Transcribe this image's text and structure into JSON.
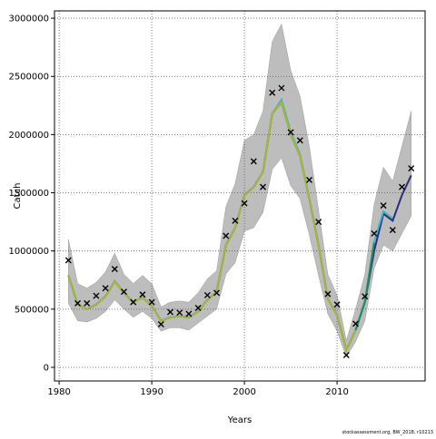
{
  "chart_data": {
    "type": "line",
    "xlabel": "Years",
    "ylabel": "Catch",
    "footer": "stockassessment.org, BW_2018, r10213",
    "x": [
      1981,
      1982,
      1983,
      1984,
      1985,
      1986,
      1987,
      1988,
      1989,
      1990,
      1991,
      1992,
      1993,
      1994,
      1995,
      1996,
      1997,
      1998,
      1999,
      2000,
      2001,
      2002,
      2003,
      2004,
      2005,
      2006,
      2007,
      2008,
      2009,
      2010,
      2011,
      2012,
      2013,
      2014,
      2015,
      2016,
      2017,
      2018
    ],
    "upper": [
      1100000,
      720000,
      680000,
      730000,
      820000,
      980000,
      800000,
      720000,
      790000,
      720000,
      520000,
      560000,
      570000,
      560000,
      640000,
      760000,
      830000,
      1380000,
      1580000,
      1950000,
      2000000,
      2200000,
      2800000,
      2950000,
      2550000,
      2330000,
      1900000,
      1350000,
      800000,
      620000,
      230000,
      500000,
      800000,
      1400000,
      1720000,
      1600000,
      1900000,
      2200000
    ],
    "lower": [
      550000,
      400000,
      390000,
      420000,
      480000,
      580000,
      500000,
      430000,
      480000,
      420000,
      310000,
      340000,
      340000,
      320000,
      380000,
      440000,
      500000,
      800000,
      900000,
      1170000,
      1200000,
      1330000,
      1700000,
      1800000,
      1560000,
      1450000,
      1140000,
      790000,
      460000,
      310000,
      90000,
      220000,
      400000,
      850000,
      1050000,
      1000000,
      1150000,
      1300000
    ],
    "band_color": "#bdbdbd",
    "series": [
      {
        "color": "#2b2d7c",
        "values": [
          790000,
          540000,
          500000,
          540000,
          610000,
          740000,
          640000,
          560000,
          600000,
          530000,
          400000,
          430000,
          440000,
          430000,
          480000,
          580000,
          650000,
          1050000,
          1200000,
          1480000,
          1550000,
          1680000,
          2180000,
          2280000,
          2000000,
          1820000,
          1450000,
          1050000,
          590000,
          450000,
          150000,
          320000,
          560000,
          1000000,
          1320000,
          1260000,
          1480000,
          1650000
        ]
      },
      {
        "color": "#3bb7c9",
        "values": [
          790000,
          540000,
          500000,
          540000,
          610000,
          740000,
          640000,
          560000,
          600000,
          530000,
          400000,
          430000,
          440000,
          430000,
          480000,
          580000,
          650000,
          1050000,
          1200000,
          1480000,
          1550000,
          1680000,
          2180000,
          2300000,
          2020000,
          1830000,
          1450000,
          1050000,
          590000,
          450000,
          150000,
          320000,
          570000,
          1080000,
          1340000,
          1280000,
          null,
          null
        ]
      },
      {
        "color": "#1f8a5a",
        "values": [
          790000,
          540000,
          500000,
          540000,
          610000,
          740000,
          640000,
          560000,
          600000,
          530000,
          400000,
          430000,
          440000,
          430000,
          480000,
          580000,
          650000,
          1050000,
          1200000,
          1480000,
          1550000,
          1680000,
          2180000,
          2280000,
          2000000,
          1820000,
          1450000,
          1050000,
          590000,
          450000,
          150000,
          320000,
          560000,
          1070000,
          null,
          null,
          null,
          null
        ]
      },
      {
        "color": "#a9b63a",
        "values": [
          790000,
          540000,
          500000,
          540000,
          610000,
          740000,
          640000,
          560000,
          600000,
          530000,
          400000,
          430000,
          440000,
          430000,
          480000,
          580000,
          650000,
          1050000,
          1200000,
          1480000,
          1550000,
          1680000,
          2180000,
          2280000,
          2000000,
          1820000,
          1450000,
          1050000,
          590000,
          450000,
          150000,
          320000,
          null,
          null,
          null,
          null,
          null,
          null
        ]
      }
    ],
    "observed": [
      920000,
      550000,
      550000,
      615000,
      680000,
      845000,
      650000,
      560000,
      625000,
      560000,
      370000,
      475000,
      470000,
      460000,
      510000,
      620000,
      640000,
      1130000,
      1260000,
      1410000,
      1770000,
      1550000,
      2360000,
      2400000,
      2020000,
      1950000,
      1610000,
      1250000,
      630000,
      540000,
      105000,
      375000,
      610000,
      1150000,
      1390000,
      1180000,
      1550000,
      1710000
    ],
    "xlim": [
      1979.5,
      2019.5
    ],
    "xticks": [
      1980,
      1990,
      2000,
      2010
    ],
    "ylim": [
      -117000,
      3063000
    ],
    "yticks": [
      0,
      500000,
      1000000,
      1500000,
      2000000,
      2500000,
      3000000
    ],
    "grid": true
  }
}
